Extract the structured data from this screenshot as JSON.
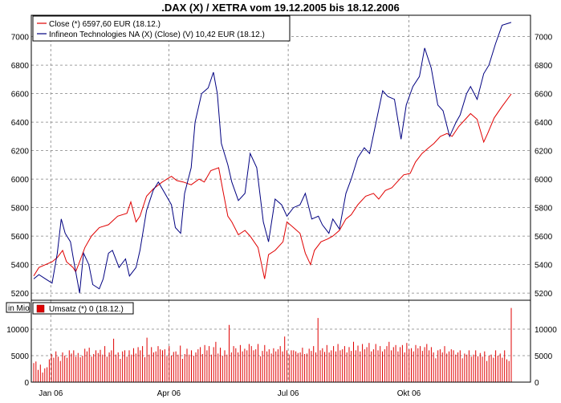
{
  "chart_data": [
    {
      "type": "line",
      "title": ".DAX (X) / XETRA vom 19.12.2005 bis 18.12.2006",
      "ylim": [
        5200,
        7100
      ],
      "y_ticks": [
        5200,
        5400,
        5600,
        5800,
        6000,
        6200,
        6400,
        6600,
        6800,
        7000
      ],
      "x_ticks": [
        "Jan 06",
        "Apr 06",
        "Jul 06",
        "Okt 06"
      ],
      "x_range": [
        "19.12.2005",
        "18.12.2006"
      ],
      "x_tick_dates": [
        "2006-01-01",
        "2006-04-01",
        "2006-07-01",
        "2006-10-01"
      ],
      "grid": true,
      "legend_position": "top-left",
      "series": [
        {
          "name": "Close (*) 6597,60 EUR (18.12.)",
          "color": "#e00000",
          "points": [
            [
              "2005-12-19",
              5320
            ],
            [
              "2005-12-23",
              5380
            ],
            [
              "2006-01-02",
              5420
            ],
            [
              "2006-01-06",
              5450
            ],
            [
              "2006-01-10",
              5500
            ],
            [
              "2006-01-13",
              5420
            ],
            [
              "2006-01-18",
              5380
            ],
            [
              "2006-01-20",
              5350
            ],
            [
              "2006-01-23",
              5420
            ],
            [
              "2006-01-27",
              5520
            ],
            [
              "2006-02-01",
              5600
            ],
            [
              "2006-02-07",
              5660
            ],
            [
              "2006-02-14",
              5680
            ],
            [
              "2006-02-21",
              5740
            ],
            [
              "2006-02-28",
              5760
            ],
            [
              "2006-03-03",
              5840
            ],
            [
              "2006-03-07",
              5700
            ],
            [
              "2006-03-10",
              5740
            ],
            [
              "2006-03-15",
              5880
            ],
            [
              "2006-03-20",
              5930
            ],
            [
              "2006-03-27",
              5980
            ],
            [
              "2006-04-03",
              6020
            ],
            [
              "2006-04-07",
              5990
            ],
            [
              "2006-04-12",
              5980
            ],
            [
              "2006-04-18",
              5960
            ],
            [
              "2006-04-24",
              6000
            ],
            [
              "2006-04-28",
              5980
            ],
            [
              "2006-05-03",
              6060
            ],
            [
              "2006-05-09",
              6080
            ],
            [
              "2006-05-12",
              5930
            ],
            [
              "2006-05-16",
              5740
            ],
            [
              "2006-05-19",
              5700
            ],
            [
              "2006-05-24",
              5610
            ],
            [
              "2006-05-29",
              5640
            ],
            [
              "2006-06-02",
              5600
            ],
            [
              "2006-06-08",
              5520
            ],
            [
              "2006-06-13",
              5300
            ],
            [
              "2006-06-16",
              5470
            ],
            [
              "2006-06-21",
              5500
            ],
            [
              "2006-06-27",
              5560
            ],
            [
              "2006-06-30",
              5700
            ],
            [
              "2006-07-05",
              5660
            ],
            [
              "2006-07-10",
              5620
            ],
            [
              "2006-07-14",
              5480
            ],
            [
              "2006-07-18",
              5400
            ],
            [
              "2006-07-21",
              5500
            ],
            [
              "2006-07-26",
              5560
            ],
            [
              "2006-07-31",
              5580
            ],
            [
              "2006-08-04",
              5600
            ],
            [
              "2006-08-09",
              5640
            ],
            [
              "2006-08-14",
              5720
            ],
            [
              "2006-08-18",
              5750
            ],
            [
              "2006-08-23",
              5820
            ],
            [
              "2006-08-29",
              5880
            ],
            [
              "2006-09-04",
              5900
            ],
            [
              "2006-09-08",
              5860
            ],
            [
              "2006-09-13",
              5920
            ],
            [
              "2006-09-18",
              5940
            ],
            [
              "2006-09-22",
              5980
            ],
            [
              "2006-09-27",
              6030
            ],
            [
              "2006-10-02",
              6040
            ],
            [
              "2006-10-06",
              6120
            ],
            [
              "2006-10-11",
              6180
            ],
            [
              "2006-10-16",
              6220
            ],
            [
              "2006-10-20",
              6250
            ],
            [
              "2006-10-25",
              6300
            ],
            [
              "2006-10-30",
              6320
            ],
            [
              "2006-11-03",
              6300
            ],
            [
              "2006-11-08",
              6370
            ],
            [
              "2006-11-13",
              6420
            ],
            [
              "2006-11-17",
              6460
            ],
            [
              "2006-11-22",
              6420
            ],
            [
              "2006-11-27",
              6260
            ],
            [
              "2006-11-30",
              6320
            ],
            [
              "2006-12-05",
              6430
            ],
            [
              "2006-12-11",
              6510
            ],
            [
              "2006-12-18",
              6597.6
            ]
          ]
        },
        {
          "name": "Infineon Technologies NA (X) (Close) (V) 10,42 EUR (18.12.)",
          "color": "#000080",
          "points": [
            [
              "2005-12-19",
              5300
            ],
            [
              "2005-12-23",
              5330
            ],
            [
              "2005-12-28",
              5300
            ],
            [
              "2006-01-02",
              5270
            ],
            [
              "2006-01-06",
              5480
            ],
            [
              "2006-01-09",
              5720
            ],
            [
              "2006-01-12",
              5620
            ],
            [
              "2006-01-16",
              5560
            ],
            [
              "2006-01-19",
              5400
            ],
            [
              "2006-01-23",
              5200
            ],
            [
              "2006-01-26",
              5480
            ],
            [
              "2006-01-30",
              5400
            ],
            [
              "2006-02-02",
              5260
            ],
            [
              "2006-02-07",
              5230
            ],
            [
              "2006-02-10",
              5300
            ],
            [
              "2006-02-14",
              5480
            ],
            [
              "2006-02-17",
              5500
            ],
            [
              "2006-02-22",
              5380
            ],
            [
              "2006-02-27",
              5440
            ],
            [
              "2006-03-02",
              5320
            ],
            [
              "2006-03-07",
              5380
            ],
            [
              "2006-03-10",
              5500
            ],
            [
              "2006-03-15",
              5780
            ],
            [
              "2006-03-20",
              5920
            ],
            [
              "2006-03-24",
              5980
            ],
            [
              "2006-03-29",
              5900
            ],
            [
              "2006-04-03",
              5820
            ],
            [
              "2006-04-06",
              5660
            ],
            [
              "2006-04-10",
              5620
            ],
            [
              "2006-04-13",
              5900
            ],
            [
              "2006-04-18",
              6080
            ],
            [
              "2006-04-21",
              6400
            ],
            [
              "2006-04-26",
              6600
            ],
            [
              "2006-05-01",
              6640
            ],
            [
              "2006-05-05",
              6750
            ],
            [
              "2006-05-08",
              6600
            ],
            [
              "2006-05-11",
              6250
            ],
            [
              "2006-05-16",
              6100
            ],
            [
              "2006-05-19",
              5980
            ],
            [
              "2006-05-24",
              5850
            ],
            [
              "2006-05-29",
              5900
            ],
            [
              "2006-06-02",
              6180
            ],
            [
              "2006-06-07",
              6080
            ],
            [
              "2006-06-12",
              5700
            ],
            [
              "2006-06-16",
              5560
            ],
            [
              "2006-06-21",
              5860
            ],
            [
              "2006-06-26",
              5820
            ],
            [
              "2006-06-30",
              5740
            ],
            [
              "2006-07-05",
              5800
            ],
            [
              "2006-07-10",
              5820
            ],
            [
              "2006-07-14",
              5900
            ],
            [
              "2006-07-19",
              5720
            ],
            [
              "2006-07-24",
              5740
            ],
            [
              "2006-07-27",
              5680
            ],
            [
              "2006-08-01",
              5620
            ],
            [
              "2006-08-04",
              5720
            ],
            [
              "2006-08-09",
              5650
            ],
            [
              "2006-08-14",
              5900
            ],
            [
              "2006-08-18",
              6000
            ],
            [
              "2006-08-23",
              6150
            ],
            [
              "2006-08-28",
              6220
            ],
            [
              "2006-09-01",
              6180
            ],
            [
              "2006-09-06",
              6400
            ],
            [
              "2006-09-11",
              6620
            ],
            [
              "2006-09-15",
              6580
            ],
            [
              "2006-09-20",
              6560
            ],
            [
              "2006-09-25",
              6280
            ],
            [
              "2006-09-29",
              6520
            ],
            [
              "2006-10-04",
              6650
            ],
            [
              "2006-10-09",
              6720
            ],
            [
              "2006-10-13",
              6920
            ],
            [
              "2006-10-18",
              6780
            ],
            [
              "2006-10-23",
              6520
            ],
            [
              "2006-10-27",
              6480
            ],
            [
              "2006-11-01",
              6300
            ],
            [
              "2006-11-06",
              6400
            ],
            [
              "2006-11-09",
              6450
            ],
            [
              "2006-11-14",
              6600
            ],
            [
              "2006-11-17",
              6650
            ],
            [
              "2006-11-22",
              6560
            ],
            [
              "2006-11-27",
              6740
            ],
            [
              "2006-12-01",
              6800
            ],
            [
              "2006-12-06",
              6950
            ],
            [
              "2006-12-11",
              7080
            ],
            [
              "2006-12-18",
              7100
            ]
          ]
        }
      ]
    },
    {
      "type": "bar",
      "ylabel": "in Mio",
      "ylim": [
        0,
        14000
      ],
      "y_ticks": [
        0,
        5000,
        10000
      ],
      "legend_position": "top-left",
      "series": [
        {
          "name": "Umsatz (*) 0 (18.12.)",
          "color": "#e00000",
          "values": [
            3600,
            3900,
            2300,
            3300,
            1800,
            2600,
            2800,
            4300,
            5300,
            4600,
            5800,
            4800,
            4000,
            5600,
            5000,
            4600,
            6000,
            5400,
            6000,
            4800,
            5500,
            4700,
            5000,
            6300,
            5800,
            6500,
            4800,
            5300,
            6000,
            5500,
            6100,
            5200,
            6800,
            4800,
            5600,
            6000,
            8200,
            5200,
            5600,
            4400,
            5800,
            6000,
            4800,
            6000,
            5200,
            6400,
            5400,
            6600,
            6000,
            6800,
            4700,
            8400,
            5200,
            6600,
            5600,
            5800,
            6800,
            6200,
            6000,
            6200,
            4900,
            6800,
            5000,
            5700,
            5800,
            5200,
            6900,
            4400,
            5300,
            6300,
            5200,
            6000,
            5000,
            5600,
            6200,
            6600,
            5300,
            7000,
            6000,
            6800,
            5200,
            6600,
            7600,
            5400,
            6500,
            5000,
            6000,
            5200,
            10800,
            5600,
            6800,
            6400,
            5600,
            7000,
            5800,
            6300,
            6000,
            7200,
            6800,
            6000,
            6200,
            7200,
            4900,
            5900,
            7000,
            5800,
            6200,
            5400,
            6400,
            5800,
            6200,
            6800,
            5800,
            8600,
            6000,
            5200,
            6000,
            6000,
            5800,
            5500,
            5600,
            6500,
            5300,
            5400,
            6300,
            5900,
            6800,
            5600,
            12100,
            6000,
            6400,
            5700,
            7000,
            5600,
            6000,
            6800,
            5800,
            7200,
            6000,
            6200,
            6800,
            5600,
            6600,
            5900,
            7600,
            6000,
            6900,
            5800,
            7200,
            6200,
            6600,
            7400,
            5800,
            6200,
            7200,
            6000,
            6800,
            5800,
            6200,
            6800,
            7600,
            6000,
            6600,
            7000,
            5800,
            6600,
            7000,
            5600,
            7400,
            6200,
            6400,
            5800,
            7000,
            6400,
            6800,
            5900,
            6600,
            7200,
            6000,
            6600,
            5600,
            4500,
            6000,
            6200,
            5600,
            6800,
            5400,
            5800,
            6200,
            6000,
            5200,
            5600,
            6000,
            4500,
            5400,
            5200,
            6000,
            4800,
            5200,
            6000,
            4900,
            5500,
            4800,
            5800,
            4000,
            5000,
            5200,
            4600,
            6000,
            5000,
            5400,
            4600,
            6000,
            4300,
            4000,
            14000
          ]
        }
      ]
    }
  ]
}
